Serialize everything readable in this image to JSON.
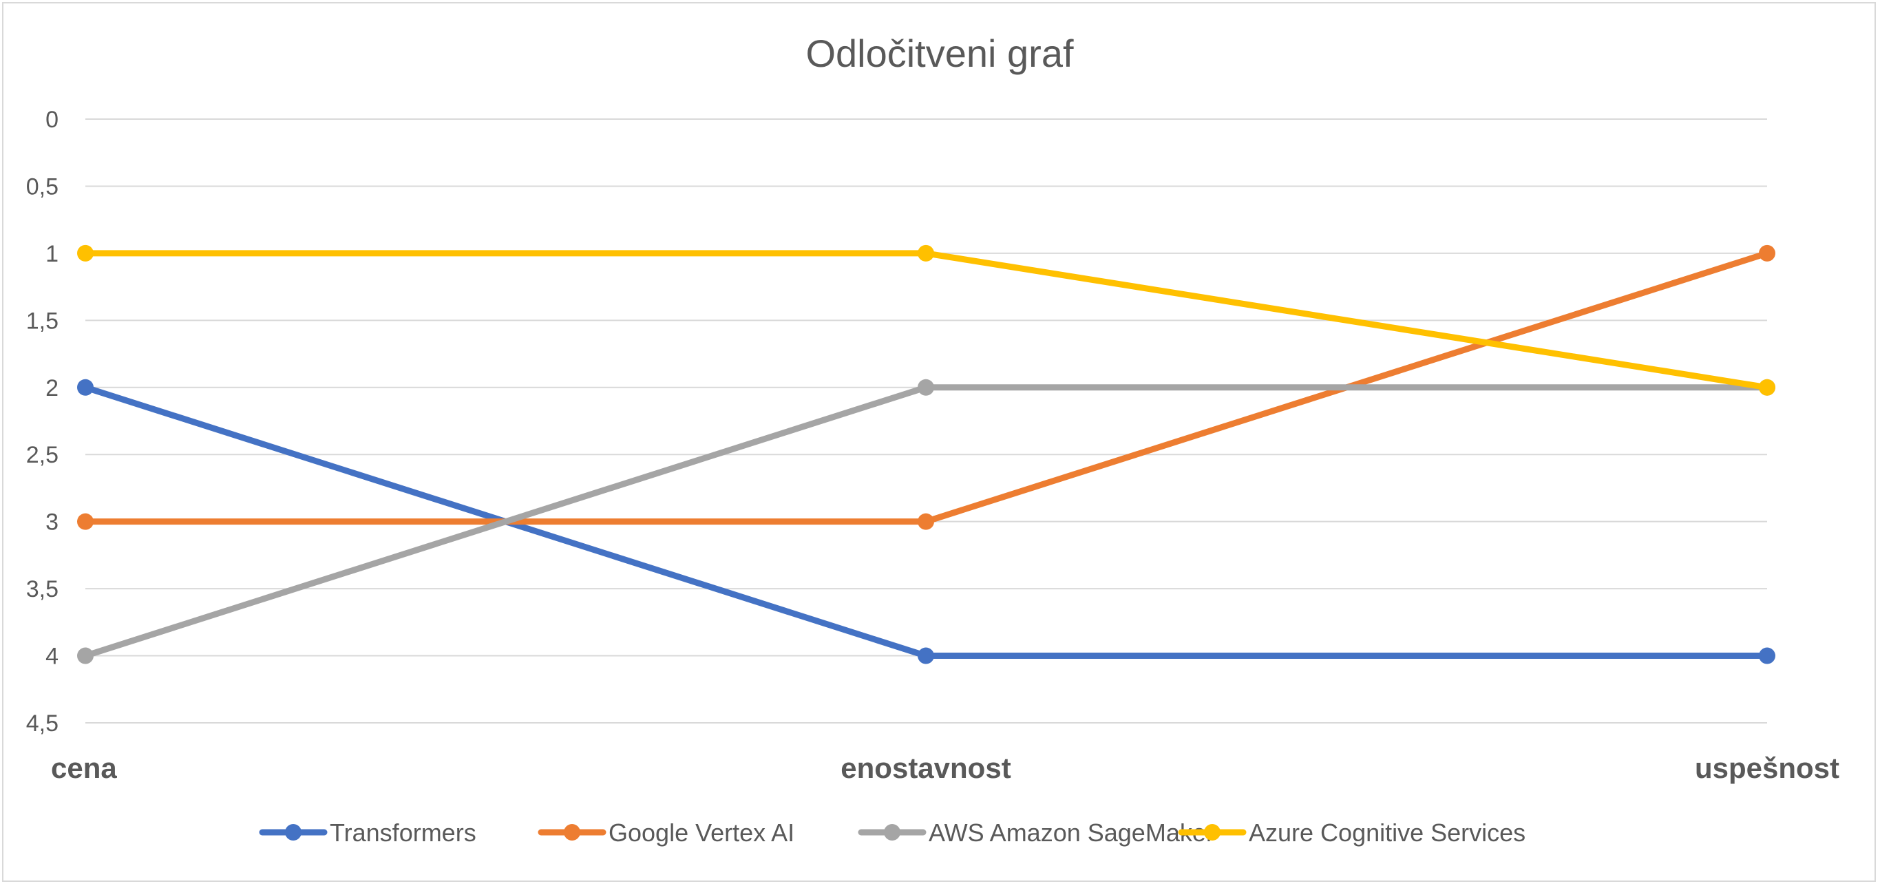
{
  "chart_data": {
    "type": "line",
    "title": "Odločitveni graf",
    "xlabel": "",
    "ylabel": "",
    "categories": [
      "cena",
      "enostavnost",
      "uspešnost"
    ],
    "y_ticks": [
      "0",
      "0,5",
      "1",
      "1,5",
      "2",
      "2,5",
      "3",
      "3,5",
      "4",
      "4,5"
    ],
    "ylim": [
      0,
      4.5
    ],
    "y_inverted": true,
    "grid": true,
    "legend_position": "bottom",
    "series": [
      {
        "name": "Transformers",
        "values": [
          2,
          4,
          4
        ],
        "color": "#4472C4"
      },
      {
        "name": "Google Vertex AI",
        "values": [
          3,
          3,
          1
        ],
        "color": "#ED7D31"
      },
      {
        "name": "AWS Amazon SageMaker",
        "values": [
          4,
          2,
          2
        ],
        "color": "#A5A5A5"
      },
      {
        "name": "Azure Cognitive Services",
        "values": [
          1,
          1,
          2
        ],
        "color": "#FFC000"
      }
    ]
  }
}
